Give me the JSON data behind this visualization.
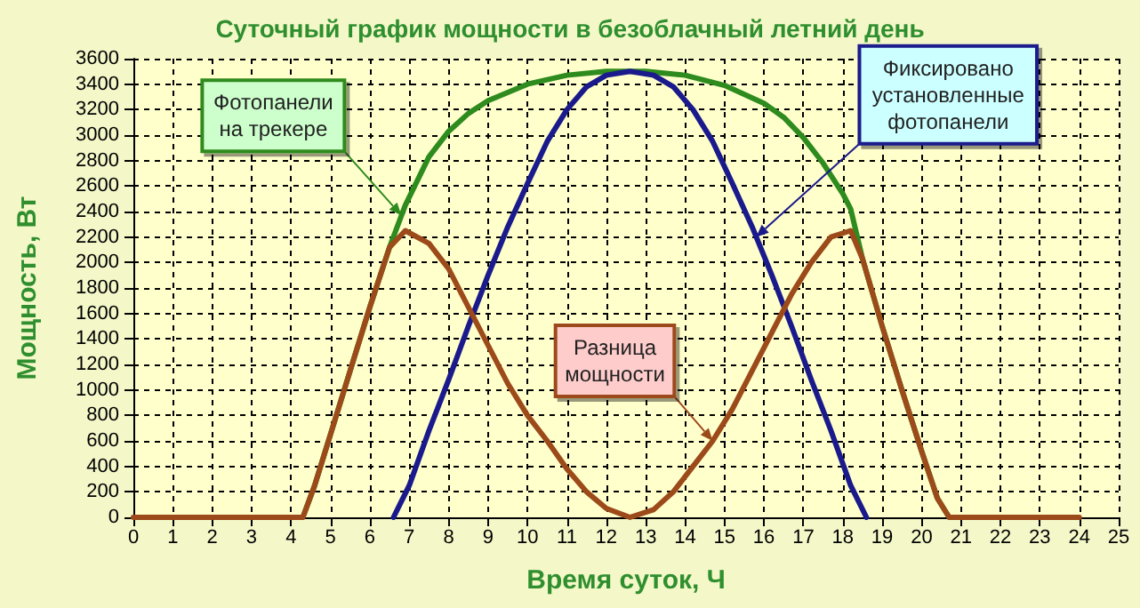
{
  "chart_data": {
    "type": "line",
    "title": "Суточный график мощности в безоблачный летний день",
    "xlabel": "Время суток, Ч",
    "ylabel": "Мощность, Вт",
    "xlim": [
      0,
      25
    ],
    "xticks": [
      0,
      1,
      2,
      3,
      4,
      5,
      6,
      7,
      8,
      9,
      10,
      11,
      12,
      13,
      14,
      15,
      16,
      17,
      18,
      19,
      20,
      21,
      22,
      23,
      24,
      25
    ],
    "ylim": [
      0,
      3600
    ],
    "yticks": [
      0,
      200,
      400,
      600,
      800,
      1000,
      1200,
      1400,
      1600,
      1800,
      2000,
      2200,
      2400,
      2600,
      2800,
      3000,
      3200,
      3400,
      3600
    ],
    "grid": true,
    "marker": "none",
    "line_style": "solid",
    "series": [
      {
        "color": "#2e8b1e",
        "x": [
          4.3,
          4.6,
          5,
          5.5,
          6,
          6.5,
          6.9,
          7.5,
          8,
          8.5,
          9,
          10,
          11,
          12,
          13,
          14,
          15,
          16,
          16.5,
          17,
          17.5,
          18,
          18.2,
          18.5,
          19,
          19.5,
          20,
          20.4,
          20.7
        ],
        "values": [
          0,
          250,
          650,
          1150,
          1650,
          2120,
          2450,
          2830,
          3030,
          3170,
          3270,
          3400,
          3470,
          3500,
          3500,
          3470,
          3390,
          3250,
          3140,
          2980,
          2780,
          2540,
          2420,
          2030,
          1500,
          1000,
          520,
          150,
          0
        ]
      },
      {
        "color": "#1a1a8c",
        "x": [
          6.6,
          7,
          7.5,
          8,
          8.5,
          9,
          9.5,
          10,
          10.5,
          11,
          11.5,
          12,
          12.6,
          13.2,
          13.7,
          14.2,
          14.7,
          15.2,
          15.7,
          16.2,
          16.7,
          17.2,
          17.7,
          18.2,
          18.6
        ],
        "values": [
          0,
          250,
          680,
          1080,
          1500,
          1900,
          2280,
          2620,
          2950,
          3200,
          3380,
          3470,
          3500,
          3470,
          3380,
          3200,
          2950,
          2620,
          2280,
          1900,
          1500,
          1080,
          680,
          250,
          0
        ]
      },
      {
        "color": "#9c4a1a",
        "x": [
          0,
          4.3,
          4.6,
          5,
          5.5,
          6,
          6.5,
          6.9,
          7.5,
          8,
          8.5,
          9,
          9.5,
          10,
          10.5,
          11,
          11.5,
          12,
          12.6,
          13.2,
          13.7,
          14.2,
          14.7,
          15.2,
          15.7,
          16.2,
          16.7,
          17.2,
          17.7,
          18.2,
          18.5,
          19,
          19.5,
          20,
          20.4,
          20.7,
          24
        ],
        "values": [
          0,
          0,
          250,
          650,
          1150,
          1650,
          2120,
          2250,
          2150,
          1950,
          1650,
          1350,
          1050,
          800,
          600,
          380,
          200,
          70,
          0,
          60,
          200,
          400,
          600,
          850,
          1150,
          1450,
          1750,
          2000,
          2200,
          2250,
          2030,
          1500,
          1000,
          520,
          150,
          0,
          0
        ]
      }
    ],
    "annotations": [
      {
        "text": "Фотопанели\nна трекере",
        "x": 6.8,
        "y": 2370
      },
      {
        "text": "Фиксировано\nустановленные\nфотопанели",
        "x": 15.8,
        "y": 2200
      },
      {
        "text": "Разница\nмощности",
        "x": 14.7,
        "y": 600
      }
    ]
  }
}
